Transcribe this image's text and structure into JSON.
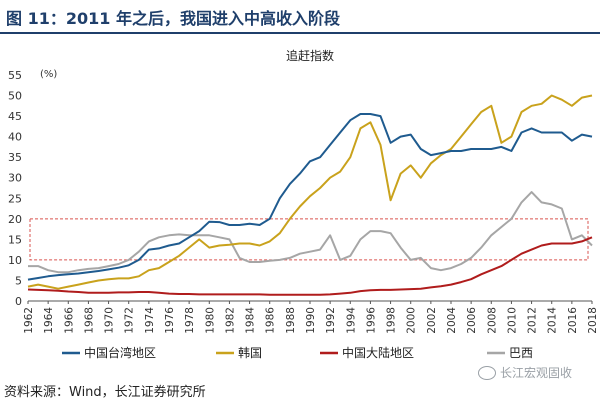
{
  "figure": {
    "header": "图 11：2011 年之后，我国进入中高收入阶段",
    "source": "资料来源：Wind，长江证券研究所",
    "watermark": "长江宏观固收"
  },
  "chart_data": {
    "type": "line",
    "title": "追赶指数",
    "unit_label": "(%)",
    "ylim": [
      0,
      55
    ],
    "yticks": [
      0,
      5,
      10,
      15,
      20,
      25,
      30,
      35,
      40,
      45,
      50,
      55
    ],
    "xlim": [
      1962,
      2018
    ],
    "xticks": [
      1962,
      1964,
      1966,
      1968,
      1970,
      1972,
      1974,
      1976,
      1978,
      1980,
      1982,
      1984,
      1986,
      1988,
      1990,
      1992,
      1994,
      1996,
      1998,
      2000,
      2002,
      2004,
      2006,
      2008,
      2010,
      2012,
      2014,
      2016,
      2018
    ],
    "band": [
      10,
      20
    ],
    "legend_position": "bottom",
    "colors": {
      "taiwan": "#1f5b8f",
      "korea": "#c9a21c",
      "mainland": "#b01c1c",
      "brazil": "#a6a6a6",
      "band": "#d9534f"
    },
    "x": [
      1962,
      1963,
      1964,
      1965,
      1966,
      1967,
      1968,
      1969,
      1970,
      1971,
      1972,
      1973,
      1974,
      1975,
      1976,
      1977,
      1978,
      1979,
      1980,
      1981,
      1982,
      1983,
      1984,
      1985,
      1986,
      1987,
      1988,
      1989,
      1990,
      1991,
      1992,
      1993,
      1994,
      1995,
      1996,
      1997,
      1998,
      1999,
      2000,
      2001,
      2002,
      2003,
      2004,
      2005,
      2006,
      2007,
      2008,
      2009,
      2010,
      2011,
      2012,
      2013,
      2014,
      2015,
      2016,
      2017,
      2018
    ],
    "series": [
      {
        "name": "中国台湾地区",
        "key": "taiwan",
        "values": [
          5.2,
          5.6,
          6.0,
          6.3,
          6.5,
          6.7,
          7.0,
          7.3,
          7.7,
          8.1,
          8.7,
          10.0,
          12.5,
          12.8,
          13.5,
          14.0,
          15.5,
          17.0,
          19.3,
          19.2,
          18.5,
          18.5,
          18.8,
          18.5,
          20.0,
          25.0,
          28.5,
          31.0,
          34.0,
          35.0,
          38.0,
          41.0,
          44.0,
          45.5,
          45.5,
          45.0,
          38.5,
          40.0,
          40.5,
          37.0,
          35.5,
          36.0,
          36.5,
          36.5,
          37.0,
          37.0,
          37.0,
          37.5,
          36.5,
          41.0,
          42.0,
          41.0,
          41.0,
          41.0,
          39.0,
          40.5,
          40.0
        ]
      },
      {
        "name": "韩国",
        "key": "korea",
        "values": [
          3.5,
          4.0,
          3.5,
          3.0,
          3.5,
          4.0,
          4.5,
          5.0,
          5.3,
          5.5,
          5.5,
          6.0,
          7.5,
          8.0,
          9.5,
          11.0,
          13.0,
          15.0,
          13.0,
          13.5,
          13.7,
          14.0,
          14.0,
          13.5,
          14.5,
          16.5,
          20.0,
          23.0,
          25.5,
          27.5,
          30.0,
          31.5,
          35.0,
          42.0,
          43.5,
          38.0,
          24.5,
          31.0,
          33.0,
          30.0,
          33.5,
          35.5,
          37.0,
          40.0,
          43.0,
          46.0,
          47.5,
          38.5,
          40.0,
          46.0,
          47.5,
          48.0,
          50.0,
          49.0,
          47.5,
          49.5,
          50.0
        ]
      },
      {
        "name": "中国大陆地区",
        "key": "mainland",
        "values": [
          2.8,
          2.7,
          2.6,
          2.5,
          2.3,
          2.2,
          2.0,
          2.0,
          2.0,
          2.1,
          2.1,
          2.2,
          2.2,
          2.0,
          1.8,
          1.7,
          1.7,
          1.6,
          1.6,
          1.6,
          1.6,
          1.6,
          1.6,
          1.6,
          1.5,
          1.5,
          1.5,
          1.5,
          1.5,
          1.5,
          1.6,
          1.8,
          2.0,
          2.4,
          2.6,
          2.7,
          2.7,
          2.8,
          2.9,
          3.0,
          3.3,
          3.6,
          4.0,
          4.6,
          5.3,
          6.5,
          7.5,
          8.5,
          10.0,
          11.5,
          12.5,
          13.5,
          14.0,
          14.0,
          14.0,
          14.5,
          15.5
        ]
      },
      {
        "name": "巴西",
        "key": "brazil",
        "values": [
          8.5,
          8.5,
          7.5,
          7.0,
          7.0,
          7.5,
          7.8,
          8.0,
          8.5,
          9.0,
          10.0,
          12.0,
          14.5,
          15.5,
          16.0,
          16.2,
          16.0,
          16.0,
          16.0,
          15.5,
          15.0,
          10.5,
          9.5,
          9.5,
          9.8,
          10.0,
          10.5,
          11.5,
          12.0,
          12.5,
          16.0,
          10.0,
          11.0,
          15.0,
          17.0,
          17.0,
          16.5,
          13.0,
          10.0,
          10.5,
          8.0,
          7.5,
          8.0,
          9.0,
          10.5,
          13.0,
          16.0,
          18.0,
          20.0,
          24.0,
          26.5,
          24.0,
          23.5,
          22.5,
          15.0,
          16.0,
          13.5
        ]
      }
    ]
  }
}
